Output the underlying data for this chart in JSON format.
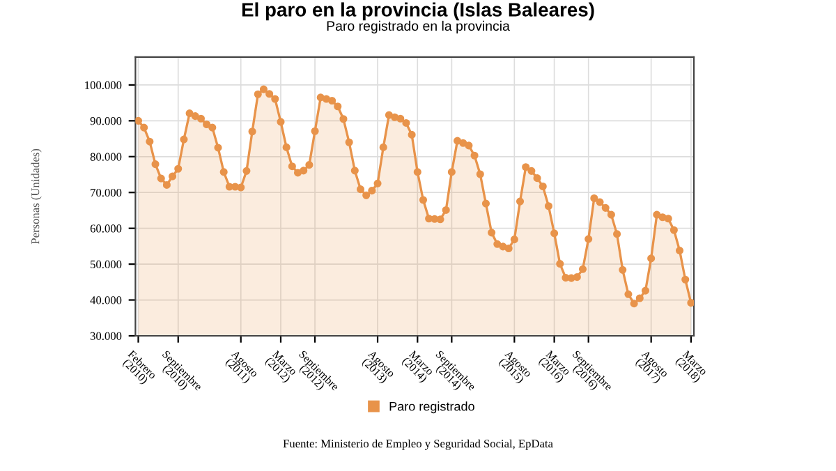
{
  "chart_data": {
    "type": "area",
    "title": "El paro en la provincia (Islas Baleares)",
    "subtitle": "Paro registrado en la provincia",
    "ylabel": "Personas (Unidades)",
    "categories": [
      "Febrero\n(2010)",
      null,
      null,
      null,
      null,
      null,
      null,
      "Septiembre\n(2010)",
      null,
      null,
      null,
      null,
      null,
      null,
      null,
      null,
      null,
      null,
      "Agosto\n(2011)",
      null,
      null,
      null,
      null,
      null,
      null,
      "Marzo\n(2012)",
      null,
      null,
      null,
      null,
      null,
      "Septiembre\n(2012)",
      null,
      null,
      null,
      null,
      null,
      null,
      null,
      null,
      null,
      null,
      "Agosto\n(2013)",
      null,
      null,
      null,
      null,
      null,
      null,
      "Marzo\n(2014)",
      null,
      null,
      null,
      null,
      null,
      "Septiembre\n(2014)",
      null,
      null,
      null,
      null,
      null,
      null,
      null,
      null,
      null,
      null,
      "Agosto\n(2015)",
      null,
      null,
      null,
      null,
      null,
      null,
      "Marzo\n(2016)",
      null,
      null,
      null,
      null,
      null,
      "Septiembre\n(2016)",
      null,
      null,
      null,
      null,
      null,
      null,
      null,
      null,
      null,
      null,
      "Agosto\n(2017)",
      null,
      null,
      null,
      null,
      null,
      null,
      "Marzo\n(2018)"
    ],
    "series": [
      {
        "name": "Paro registrado",
        "color": "#e8934a",
        "values": [
          90000,
          88100,
          84200,
          77900,
          73900,
          72100,
          74500,
          76600,
          84800,
          92100,
          91300,
          90600,
          89000,
          88100,
          82500,
          75700,
          71600,
          71600,
          71400,
          76000,
          87000,
          97400,
          98800,
          97500,
          96100,
          89700,
          82600,
          77300,
          75500,
          76100,
          77700,
          87100,
          96500,
          96100,
          95600,
          94000,
          90500,
          84000,
          76100,
          70900,
          69200,
          70500,
          72500,
          82600,
          91600,
          91000,
          90600,
          89400,
          86100,
          75700,
          67900,
          62700,
          62600,
          62500,
          65100,
          75700,
          84400,
          83800,
          83100,
          80300,
          75100,
          66900,
          58800,
          55600,
          54900,
          54400,
          56900,
          67500,
          77100,
          76000,
          74000,
          71700,
          66200,
          58600,
          50100,
          46200,
          46100,
          46400,
          48600,
          57000,
          68400,
          67300,
          65700,
          63800,
          58400,
          48400,
          41600,
          39000,
          40500,
          42600,
          51600,
          63800,
          63100,
          62700,
          59500,
          53800,
          45700,
          39200
        ]
      }
    ],
    "ylim": [
      30000,
      107800
    ],
    "yticks": [
      {
        "value": 30000,
        "label": "30.000"
      },
      {
        "value": 40000,
        "label": "40.000"
      },
      {
        "value": 50000,
        "label": "50.000"
      },
      {
        "value": 60000,
        "label": "60.000"
      },
      {
        "value": 70000,
        "label": "70.000"
      },
      {
        "value": 80000,
        "label": "80.000"
      },
      {
        "value": 90000,
        "label": "90.000"
      },
      {
        "value": 100000,
        "label": "100.000"
      }
    ],
    "grid": true,
    "legend": "bottom",
    "marker": "circle",
    "line_style": "solid",
    "annotations": [
      "Fuente: Ministerio de Empleo y Seguridad Social, EpData"
    ]
  }
}
